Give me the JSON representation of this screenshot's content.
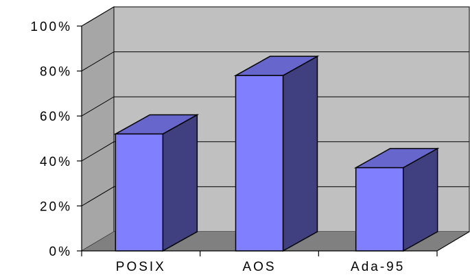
{
  "chart_data": {
    "type": "bar",
    "categories": [
      "POSIX",
      "AOS",
      "Ada-95"
    ],
    "values": [
      52,
      78,
      37
    ],
    "ylim": [
      0,
      100
    ],
    "yticks": [
      0,
      20,
      40,
      60,
      80,
      100
    ],
    "ytick_labels": [
      "0%",
      "20%",
      "40%",
      "60%",
      "80%",
      "100%"
    ],
    "title": "",
    "xlabel": "",
    "ylabel": "",
    "grid": true,
    "legend": "none",
    "style": "3d-column",
    "colors": {
      "front": "#8080FF",
      "top": "#6666CC",
      "side": "#404080",
      "back_wall": "#C0C0C0",
      "side_wall": "#A6A6A6",
      "floor": "#808080"
    }
  }
}
